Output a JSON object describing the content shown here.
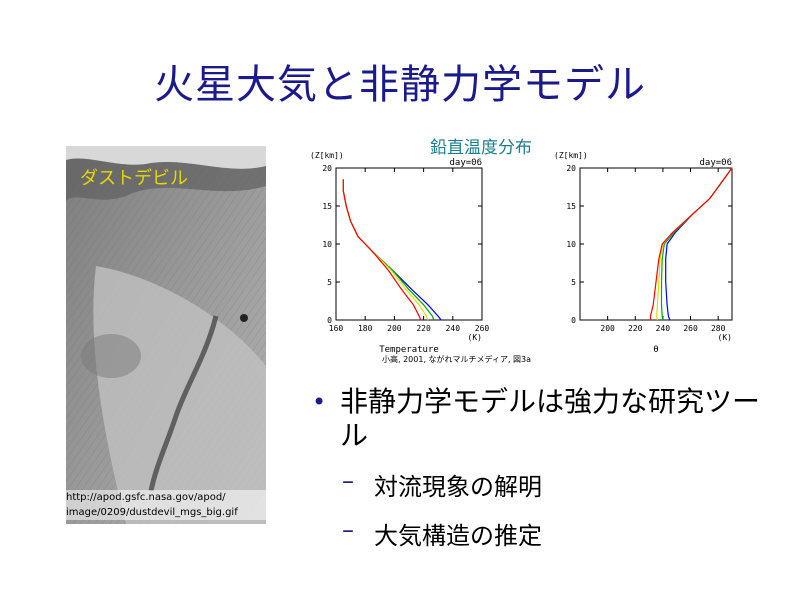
{
  "slide": {
    "title": "火星大気と非静力学モデル",
    "photo_label": "ダストデビル",
    "photo_url_line1": "http://apod.gsfc.nasa.gov/apod/",
    "photo_url_line2": "image/0209/dustdevil_mgs_big.gif",
    "figure_title": "鉛直温度分布",
    "credit": "小高, 2001, ながれマルチメディア, 図3a",
    "bullet_main": "非静力学モデルは強力な研究ツール",
    "sub_bullets": [
      "対流現象の解明",
      "大気構造の推定"
    ],
    "dash": "–",
    "bullet_dot": "•"
  },
  "colors": {
    "title": "#1a1a8c",
    "photo_label": "#e8d800",
    "figure_title": "#1a7f8c"
  },
  "chart_data": [
    {
      "type": "line",
      "title": "day=06",
      "xlabel": "Temperature",
      "ylabel": "(Z[km])",
      "xunit": "(K)",
      "xlim": [
        160,
        260
      ],
      "ylim": [
        0,
        20
      ],
      "xticks": [
        160,
        180,
        200,
        220,
        240,
        260
      ],
      "yticks": [
        0,
        5,
        10,
        15,
        20
      ],
      "series": [
        {
          "color": "#0000ff",
          "x": [
            232,
            230,
            223,
            212,
            199,
            185,
            175,
            170,
            167,
            165,
            165
          ],
          "y": [
            0,
            0.5,
            2,
            4,
            6.5,
            9,
            11,
            13,
            15,
            17,
            18.5
          ]
        },
        {
          "color": "#00aa00",
          "x": [
            227,
            226,
            220,
            210,
            199,
            185,
            175,
            170,
            167,
            165,
            165
          ],
          "y": [
            0,
            0.5,
            2,
            4,
            6.5,
            9,
            11,
            13,
            15,
            17,
            18.5
          ]
        },
        {
          "color": "#dddd00",
          "x": [
            223,
            222,
            217,
            208,
            198,
            185,
            175,
            170,
            167,
            165,
            165
          ],
          "y": [
            0,
            0.5,
            2,
            4,
            6.5,
            9,
            11,
            13,
            15,
            17,
            18.5
          ]
        },
        {
          "color": "#ff0000",
          "x": [
            218,
            217,
            213,
            205,
            196,
            185,
            175,
            170,
            167,
            165,
            165
          ],
          "y": [
            0,
            0.5,
            2,
            4,
            6.5,
            9,
            11,
            13,
            15,
            17,
            18.5
          ]
        }
      ]
    },
    {
      "type": "line",
      "title": "day=06",
      "xlabel": "θ",
      "ylabel": "(Z[km])",
      "xunit": "(K)",
      "xlim": [
        180,
        290
      ],
      "ylim": [
        0,
        20
      ],
      "xticks": [
        200,
        220,
        240,
        260,
        280
      ],
      "yticks": [
        0,
        5,
        10,
        15,
        20
      ],
      "series": [
        {
          "color": "#0000ff",
          "x": [
            245,
            244,
            243,
            242,
            242,
            243,
            249,
            262,
            274,
            290
          ],
          "y": [
            0,
            0.5,
            2,
            5,
            8,
            10,
            11.5,
            14,
            16,
            20
          ]
        },
        {
          "color": "#00aa00",
          "x": [
            240,
            239.5,
            239,
            239,
            239.5,
            241,
            248,
            262,
            274,
            290
          ],
          "y": [
            0,
            0.5,
            2,
            5,
            8,
            10,
            11.5,
            14,
            16,
            20
          ]
        },
        {
          "color": "#dddd00",
          "x": [
            236,
            235.5,
            236,
            237,
            238,
            240,
            247,
            262,
            274,
            290
          ],
          "y": [
            0,
            0.5,
            2,
            5,
            8,
            10,
            11.5,
            14,
            16,
            20
          ]
        },
        {
          "color": "#ff0000",
          "x": [
            231,
            231,
            233,
            235,
            237,
            239.5,
            247,
            262,
            274,
            290
          ],
          "y": [
            0,
            0.5,
            2,
            5,
            8,
            10,
            11.5,
            14,
            16,
            20
          ]
        }
      ]
    }
  ]
}
